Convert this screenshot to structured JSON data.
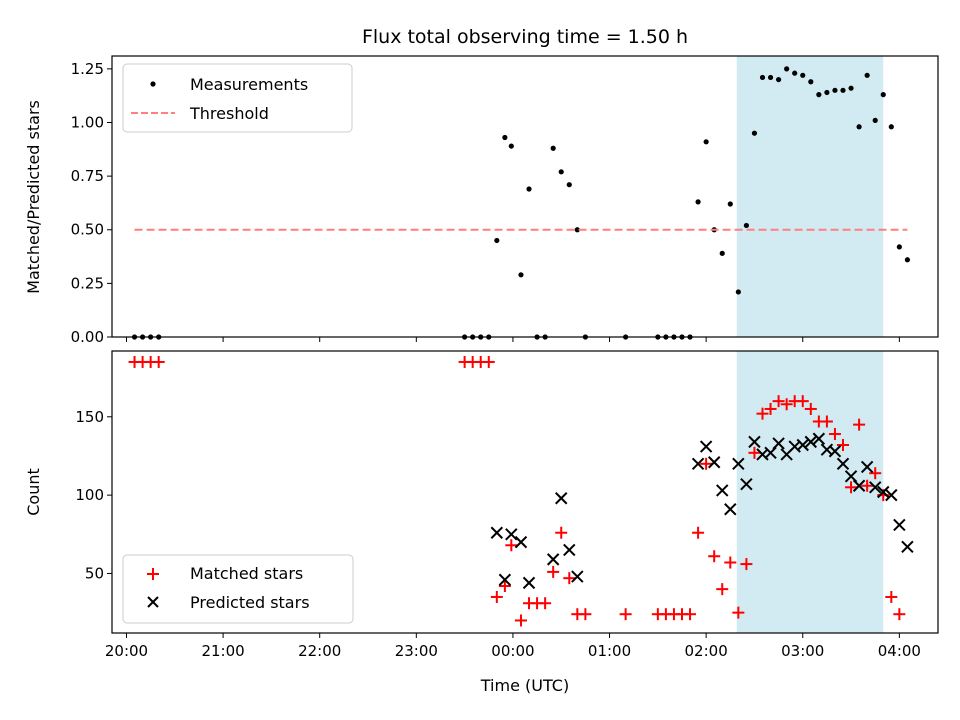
{
  "chart_data": [
    {
      "type": "scatter",
      "title": "Flux total observing time = 1.50 h",
      "ylabel": "Matched/Predicted stars",
      "xlabel": "",
      "xlim": [
        "19:51",
        "04:24"
      ],
      "ylim": [
        0,
        1.31
      ],
      "yticks": [
        "0.00",
        "0.25",
        "0.50",
        "0.75",
        "1.00",
        "1.25"
      ],
      "legend_position": "upper-left",
      "shaded_region": {
        "from": "02:19",
        "to": "03:50",
        "color": "#add8e6"
      },
      "series": [
        {
          "name": "Measurements",
          "marker": "dot",
          "color": "#000000",
          "points": [
            [
              "20:05",
              0
            ],
            [
              "20:10",
              0
            ],
            [
              "20:15",
              0
            ],
            [
              "20:20",
              0
            ],
            [
              "23:30",
              0
            ],
            [
              "23:35",
              0
            ],
            [
              "23:40",
              0
            ],
            [
              "23:45",
              0
            ],
            [
              "23:50",
              0.45
            ],
            [
              "23:55",
              0.93
            ],
            [
              "23:59",
              0.89
            ],
            [
              "00:05",
              0.29
            ],
            [
              "00:10",
              0.69
            ],
            [
              "00:15",
              0
            ],
            [
              "00:20",
              0
            ],
            [
              "00:25",
              0.88
            ],
            [
              "00:30",
              0.77
            ],
            [
              "00:35",
              0.71
            ],
            [
              "00:40",
              0.5
            ],
            [
              "00:45",
              0
            ],
            [
              "01:10",
              0
            ],
            [
              "01:30",
              0
            ],
            [
              "01:35",
              0
            ],
            [
              "01:40",
              0
            ],
            [
              "01:45",
              0
            ],
            [
              "01:50",
              0
            ],
            [
              "01:55",
              0.63
            ],
            [
              "02:00",
              0.91
            ],
            [
              "02:05",
              0.5
            ],
            [
              "02:10",
              0.39
            ],
            [
              "02:15",
              0.62
            ],
            [
              "02:20",
              0.21
            ],
            [
              "02:25",
              0.52
            ],
            [
              "02:30",
              0.95
            ],
            [
              "02:35",
              1.21
            ],
            [
              "02:40",
              1.21
            ],
            [
              "02:45",
              1.2
            ],
            [
              "02:50",
              1.25
            ],
            [
              "02:55",
              1.23
            ],
            [
              "03:00",
              1.22
            ],
            [
              "03:05",
              1.19
            ],
            [
              "03:10",
              1.13
            ],
            [
              "03:15",
              1.14
            ],
            [
              "03:20",
              1.15
            ],
            [
              "03:25",
              1.15
            ],
            [
              "03:30",
              1.16
            ],
            [
              "03:35",
              0.98
            ],
            [
              "03:40",
              1.22
            ],
            [
              "03:45",
              1.01
            ],
            [
              "03:50",
              1.13
            ],
            [
              "03:55",
              0.98
            ],
            [
              "04:00",
              0.42
            ],
            [
              "04:05",
              0.36
            ]
          ]
        },
        {
          "name": "Threshold",
          "marker": "dashed-line",
          "color": "#ff7f7f",
          "points": [
            [
              "20:05",
              0.5
            ],
            [
              "04:05",
              0.5
            ]
          ]
        }
      ]
    },
    {
      "type": "scatter",
      "title": "",
      "ylabel": "Count",
      "xlabel": "Time (UTC)",
      "xlim": [
        "19:51",
        "04:24"
      ],
      "ylim": [
        12,
        192
      ],
      "xticks": [
        "20:00",
        "21:00",
        "22:00",
        "23:00",
        "00:00",
        "01:00",
        "02:00",
        "03:00",
        "04:00"
      ],
      "yticks": [
        "50",
        "100",
        "150"
      ],
      "legend_position": "lower-left",
      "shaded_region": {
        "from": "02:19",
        "to": "03:50",
        "color": "#add8e6"
      },
      "series": [
        {
          "name": "Matched stars",
          "marker": "plus",
          "color": "#ff0000",
          "points": [
            [
              "20:05",
              185
            ],
            [
              "20:10",
              185
            ],
            [
              "20:15",
              185
            ],
            [
              "20:20",
              185
            ],
            [
              "23:30",
              185
            ],
            [
              "23:35",
              185
            ],
            [
              "23:40",
              185
            ],
            [
              "23:45",
              185
            ],
            [
              "23:50",
              35
            ],
            [
              "23:55",
              42
            ],
            [
              "23:59",
              68
            ],
            [
              "00:05",
              20
            ],
            [
              "00:10",
              31
            ],
            [
              "00:15",
              31
            ],
            [
              "00:20",
              31
            ],
            [
              "00:25",
              51
            ],
            [
              "00:30",
              76
            ],
            [
              "00:35",
              47
            ],
            [
              "00:40",
              24
            ],
            [
              "00:45",
              24
            ],
            [
              "01:10",
              24
            ],
            [
              "01:30",
              24
            ],
            [
              "01:35",
              24
            ],
            [
              "01:40",
              24
            ],
            [
              "01:45",
              24
            ],
            [
              "01:50",
              24
            ],
            [
              "01:55",
              76
            ],
            [
              "02:00",
              120
            ],
            [
              "02:05",
              61
            ],
            [
              "02:10",
              40
            ],
            [
              "02:15",
              57
            ],
            [
              "02:20",
              25
            ],
            [
              "02:25",
              56
            ],
            [
              "02:30",
              127
            ],
            [
              "02:35",
              152
            ],
            [
              "02:40",
              155
            ],
            [
              "02:45",
              160
            ],
            [
              "02:50",
              158
            ],
            [
              "02:55",
              160
            ],
            [
              "03:00",
              160
            ],
            [
              "03:05",
              155
            ],
            [
              "03:10",
              147
            ],
            [
              "03:15",
              147
            ],
            [
              "03:20",
              139
            ],
            [
              "03:25",
              132
            ],
            [
              "03:30",
              105
            ],
            [
              "03:35",
              145
            ],
            [
              "03:40",
              106
            ],
            [
              "03:45",
              114
            ],
            [
              "03:50",
              100
            ],
            [
              "03:55",
              35
            ],
            [
              "04:00",
              24
            ]
          ]
        },
        {
          "name": "Predicted stars",
          "marker": "x",
          "color": "#000000",
          "points": [
            [
              "23:50",
              76
            ],
            [
              "23:55",
              46
            ],
            [
              "23:59",
              75
            ],
            [
              "00:05",
              70
            ],
            [
              "00:10",
              44
            ],
            [
              "00:25",
              59
            ],
            [
              "00:30",
              98
            ],
            [
              "00:35",
              65
            ],
            [
              "00:40",
              48
            ],
            [
              "01:55",
              120
            ],
            [
              "02:00",
              131
            ],
            [
              "02:05",
              121
            ],
            [
              "02:10",
              103
            ],
            [
              "02:15",
              91
            ],
            [
              "02:20",
              120
            ],
            [
              "02:25",
              107
            ],
            [
              "02:30",
              134
            ],
            [
              "02:35",
              126
            ],
            [
              "02:40",
              127
            ],
            [
              "02:45",
              133
            ],
            [
              "02:50",
              126
            ],
            [
              "02:55",
              131
            ],
            [
              "03:00",
              132
            ],
            [
              "03:05",
              134
            ],
            [
              "03:10",
              136
            ],
            [
              "03:15",
              129
            ],
            [
              "03:20",
              128
            ],
            [
              "03:25",
              120
            ],
            [
              "03:30",
              112
            ],
            [
              "03:35",
              106
            ],
            [
              "03:40",
              118
            ],
            [
              "03:45",
              105
            ],
            [
              "03:50",
              102
            ],
            [
              "03:55",
              100
            ],
            [
              "04:00",
              81
            ],
            [
              "04:05",
              67
            ]
          ]
        }
      ]
    }
  ]
}
